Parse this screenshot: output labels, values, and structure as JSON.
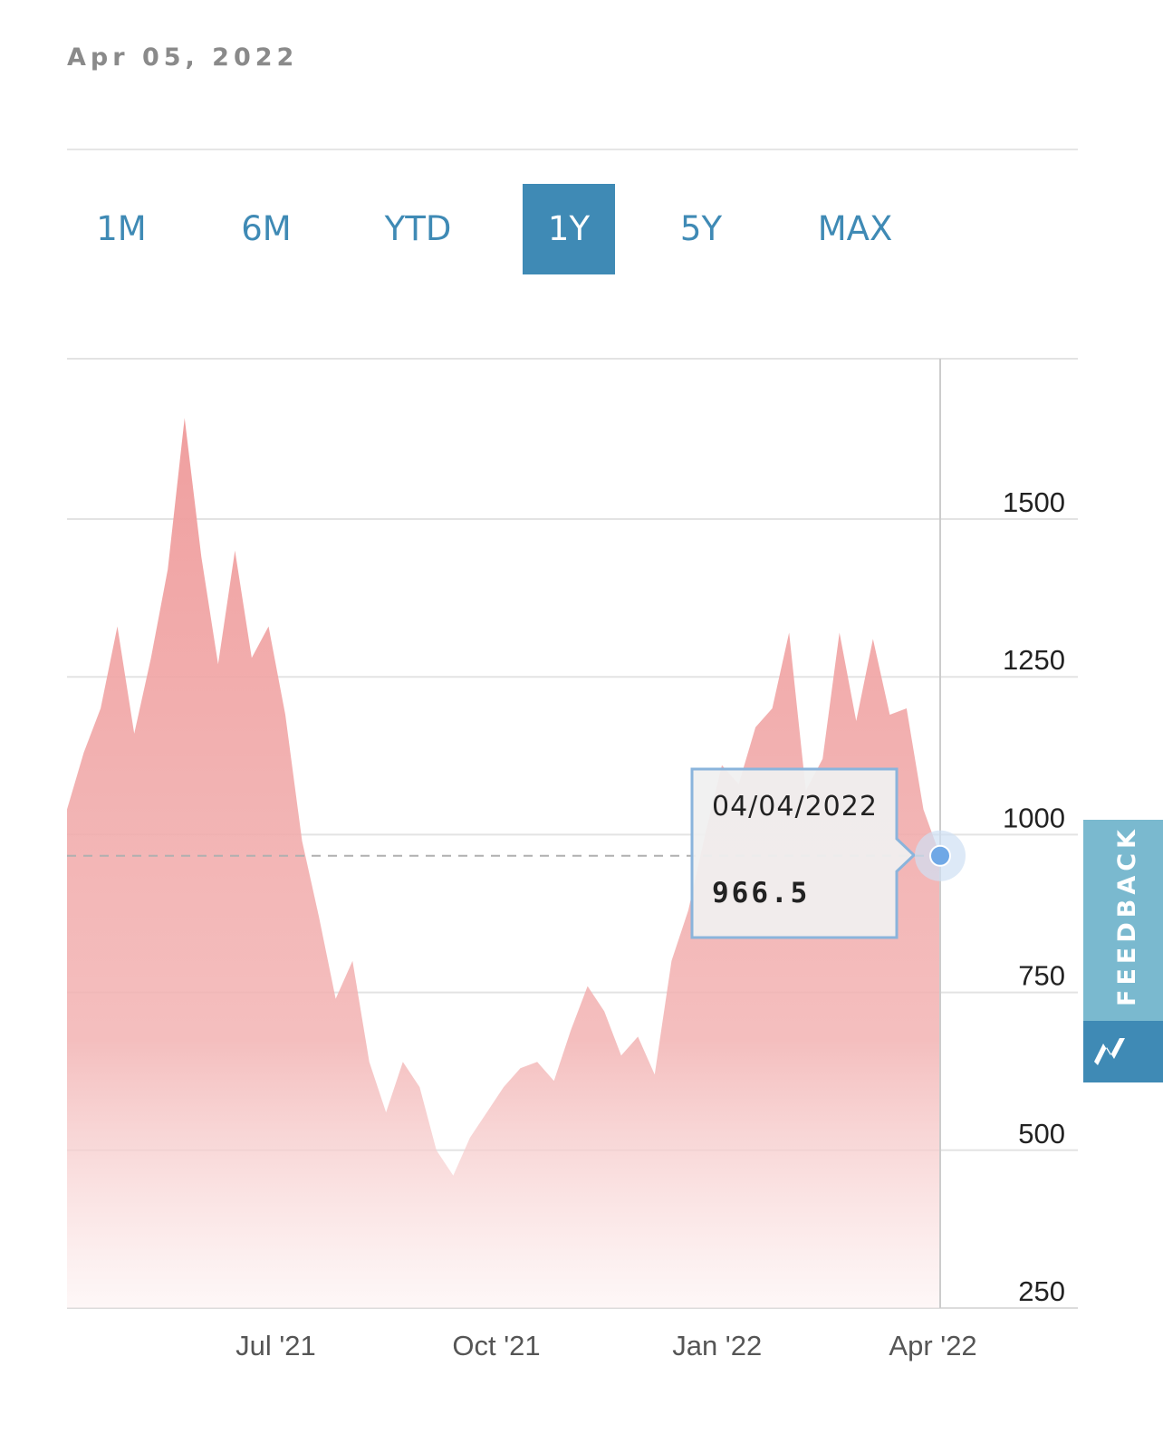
{
  "header": {
    "date": "Apr 05, 2022"
  },
  "range_tabs": [
    {
      "label": "1M",
      "active": false
    },
    {
      "label": "6M",
      "active": false
    },
    {
      "label": "YTD",
      "active": false
    },
    {
      "label": "1Y",
      "active": true
    },
    {
      "label": "5Y",
      "active": false
    },
    {
      "label": "MAX",
      "active": false
    }
  ],
  "colors": {
    "accent": "#3f8ab5",
    "area": "#ef9a9a",
    "marker": "#6fa8e6"
  },
  "tooltip": {
    "date": "04/04/2022",
    "value": "966.5"
  },
  "feedback": {
    "label": "FEEDBACK",
    "icon": "chart-logo-icon"
  },
  "chart_data": {
    "type": "area",
    "title": "",
    "xlabel": "",
    "ylabel": "",
    "ylim": [
      250,
      1680
    ],
    "y_ticks": [
      250,
      500,
      750,
      1000,
      1250,
      1500
    ],
    "y_tick_labels": [
      "250",
      "500",
      "750",
      "1000",
      "1250",
      "1500"
    ],
    "y_axis_side": "right",
    "x_tick_labels": [
      "Jul '21",
      "Oct '21",
      "Jan '22",
      "Apr '22"
    ],
    "x_ticks": [
      "2021-07-01",
      "2021-10-01",
      "2022-01-01",
      "2022-04-01"
    ],
    "grid": true,
    "legend": "none",
    "reference_line": 966.5,
    "series": [
      {
        "x": [
          "2021-04-05",
          "2021-04-12",
          "2021-04-19",
          "2021-04-26",
          "2021-05-03",
          "2021-05-10",
          "2021-05-17",
          "2021-05-24",
          "2021-05-31",
          "2021-06-07",
          "2021-06-14",
          "2021-06-21",
          "2021-06-28",
          "2021-07-05",
          "2021-07-12",
          "2021-07-19",
          "2021-07-26",
          "2021-08-02",
          "2021-08-09",
          "2021-08-16",
          "2021-08-23",
          "2021-08-30",
          "2021-09-06",
          "2021-09-13",
          "2021-09-20",
          "2021-09-27",
          "2021-10-04",
          "2021-10-11",
          "2021-10-18",
          "2021-10-25",
          "2021-11-01",
          "2021-11-08",
          "2021-11-15",
          "2021-11-22",
          "2021-11-29",
          "2021-12-06",
          "2021-12-13",
          "2021-12-20",
          "2021-12-27",
          "2022-01-03",
          "2022-01-10",
          "2022-01-17",
          "2022-01-24",
          "2022-01-31",
          "2022-02-07",
          "2022-02-14",
          "2022-02-21",
          "2022-02-28",
          "2022-03-07",
          "2022-03-14",
          "2022-03-21",
          "2022-03-28",
          "2022-04-04"
        ],
        "values": [
          1040,
          1130,
          1200,
          1330,
          1160,
          1280,
          1420,
          1660,
          1440,
          1270,
          1450,
          1280,
          1330,
          1190,
          990,
          870,
          740,
          800,
          640,
          560,
          640,
          600,
          500,
          460,
          520,
          560,
          600,
          630,
          640,
          610,
          690,
          760,
          720,
          650,
          680,
          620,
          800,
          880,
          1000,
          1110,
          1080,
          1170,
          1200,
          1320,
          1070,
          1120,
          1320,
          1180,
          1310,
          1190,
          1200,
          1040,
          966.5
        ]
      }
    ]
  }
}
